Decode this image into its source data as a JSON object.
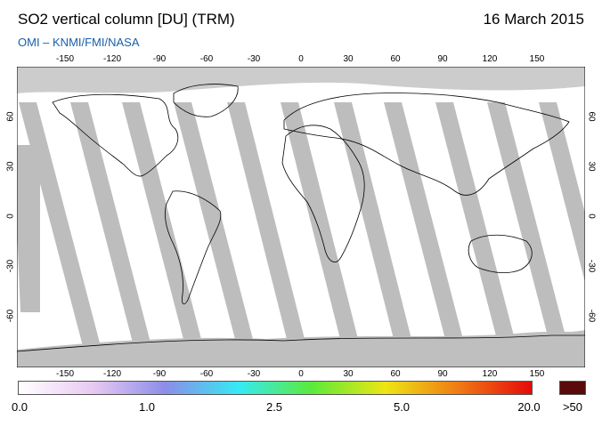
{
  "header": {
    "title": "SO2 vertical column [DU] (TRM)",
    "date": "16 March 2015",
    "source": "OMI  –  KNMI/FMI/NASA"
  },
  "map": {
    "lon_ticks": [
      "-150",
      "-120",
      "-90",
      "-60",
      "-30",
      "0",
      "30",
      "60",
      "90",
      "120",
      "150"
    ],
    "lat_ticks_left": [
      "60",
      "30",
      "0",
      "-30",
      "-60"
    ],
    "lat_ticks_right": [
      "60",
      "30",
      "0",
      "-30",
      "-60"
    ],
    "no_data_color": "#cccccc",
    "coverage_gap_color": "#9d9d9d",
    "land_outline_color": "#000000"
  },
  "colorbar": {
    "labels": [
      "0.0",
      "1.0",
      "2.5",
      "5.0",
      "20.0"
    ],
    "overflow_label": ">50",
    "colors": [
      "#ffffff",
      "#e9c9f2",
      "#8c8de8",
      "#36e9f5",
      "#5bea3a",
      "#ede614",
      "#f07a14",
      "#e50a0a"
    ],
    "overflow_color": "#5a0a0a"
  }
}
